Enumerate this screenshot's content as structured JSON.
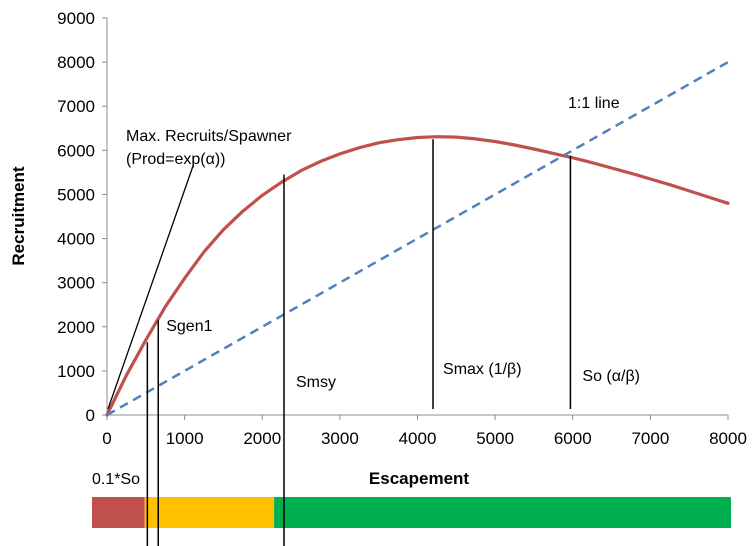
{
  "chart_data": {
    "type": "line",
    "title": "",
    "xlabel": "Escapement",
    "ylabel": "Recruitment",
    "xlim": [
      0,
      8000
    ],
    "ylim": [
      0,
      9000
    ],
    "xticks": [
      0,
      1000,
      2000,
      3000,
      4000,
      5000,
      6000,
      7000,
      8000
    ],
    "yticks": [
      0,
      1000,
      2000,
      3000,
      4000,
      5000,
      6000,
      7000,
      8000,
      9000
    ],
    "xtick_labels": [
      "0",
      "1000",
      "2000",
      "3000",
      "4000",
      "5000",
      "6000",
      "7000",
      "8000"
    ],
    "ytick_labels": [
      "0",
      "1000",
      "2000",
      "3000",
      "4000",
      "5000",
      "6000",
      "7000",
      "8000",
      "9000"
    ],
    "grid": false,
    "series": [
      {
        "color": "#c0504d",
        "style": "solid",
        "x": [
          0,
          250,
          500,
          750,
          1000,
          1250,
          1500,
          1750,
          2000,
          2250,
          2500,
          2750,
          3000,
          3250,
          3500,
          3750,
          4000,
          4250,
          4500,
          4750,
          5000,
          5250,
          5500,
          5750,
          6000,
          6250,
          6500,
          6750,
          7000,
          7250,
          7500,
          7750,
          8000
        ],
        "y": [
          0,
          900,
          1700,
          2450,
          3100,
          3700,
          4200,
          4620,
          4980,
          5280,
          5540,
          5750,
          5920,
          6060,
          6170,
          6240,
          6290,
          6310,
          6300,
          6260,
          6200,
          6120,
          6030,
          5930,
          5830,
          5720,
          5600,
          5480,
          5350,
          5220,
          5080,
          4940,
          4800
        ]
      },
      {
        "color": "#4f81bd",
        "style": "dashed",
        "x": [
          0,
          8000
        ],
        "y": [
          0,
          8000
        ]
      }
    ],
    "markers": [
      {
        "label": "0.1*So",
        "x": 520,
        "y_top": 1650
      },
      {
        "label": "Sgen1",
        "x": 660,
        "y_top": 2150
      },
      {
        "label": "Smsy",
        "x": 2280,
        "y_top": 5450
      },
      {
        "label": "Smax (1/β)",
        "x": 4200,
        "y_top": 6250
      },
      {
        "label": "So (α/β)",
        "x": 5970,
        "y_top": 5880
      }
    ],
    "annotations": [
      "1:1 line",
      "Max. Recruits/Spawner",
      "(Prod=exp(α))"
    ],
    "zones": [
      {
        "from": 0,
        "to": 660,
        "color": "#c0504d"
      },
      {
        "from": 660,
        "to": 2280,
        "color": "#ffc000"
      },
      {
        "from": 2280,
        "to": 8000,
        "color": "#00b050"
      }
    ]
  },
  "labels": {
    "one_to_one": "1:1 line",
    "max_recruits_line1": "Max. Recruits/Spawner",
    "max_recruits_line2": "(Prod=exp(α))"
  }
}
